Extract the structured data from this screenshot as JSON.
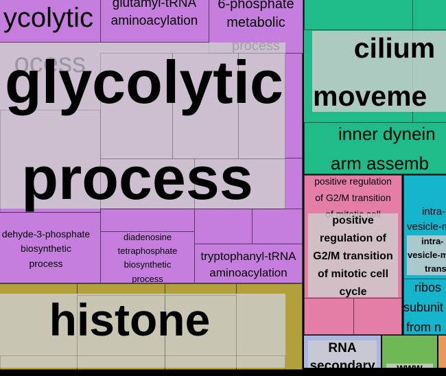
{
  "colors": {
    "purple": "#c67ede",
    "teal": "#1fbb8b",
    "olive": "#b2a03c",
    "pink": "#e57ea6",
    "cyan": "#15b4cd",
    "lavender": "#a9b6e6",
    "green": "#6fb856",
    "grey_label_bg": "#cfcfcf"
  },
  "purple_group": {
    "title_line1": "glycolytic",
    "title_line2": "process",
    "cells": {
      "glycolytic_top_fragment": "ycolytic",
      "glutamyl_line1": "glutamyl-tRNA",
      "glutamyl_line2": "aminoacylation",
      "phosphate_line1": "6-phosphate",
      "phosphate_line2": "metabolic",
      "phosphate_line3": "process",
      "faded_process": "ocess",
      "aldehyde_line1": "dehyde-3-phosphate",
      "aldehyde_line2": "biosynthetic",
      "aldehyde_line3": "process",
      "diadenosine_line1": "diadenosine",
      "diadenosine_line2": "tetraphosphate",
      "diadenosine_line3": "biosynthetic",
      "diadenosine_line4": "process",
      "tryptophanyl_line1": "tryptophanyl-tRNA",
      "tryptophanyl_line2": "aminoacylation"
    }
  },
  "teal_group": {
    "title_line1": "cilium",
    "title_line2": "moveme",
    "inner_line1": "inner dynein",
    "inner_line2": "arm assemb"
  },
  "pink_group": {
    "small_line1": "positive regulation",
    "small_line2": "of G2/M transition",
    "small_line3": "of mitotic cell",
    "title_line1": "positive",
    "title_line2": "regulation of",
    "title_line3": "G2/M transition",
    "title_line4": "of mitotic cell",
    "title_line5": "cycle"
  },
  "cyan_group": {
    "intra_line1": "intra-",
    "intra_line2": "vesicle-m",
    "intra_bold_line1": "intra-",
    "intra_bold_line2": "vesicle-m",
    "intra_bold_line3": "trans",
    "ribos_line1": "ribos",
    "ribos_line2": "subunit",
    "ribos_line3": "from n"
  },
  "olive_group": {
    "title": "histone"
  },
  "lavender_group": {
    "title_line1": "RNA",
    "title_line2": "secondary"
  },
  "green_group": {
    "fragment": "www"
  }
}
